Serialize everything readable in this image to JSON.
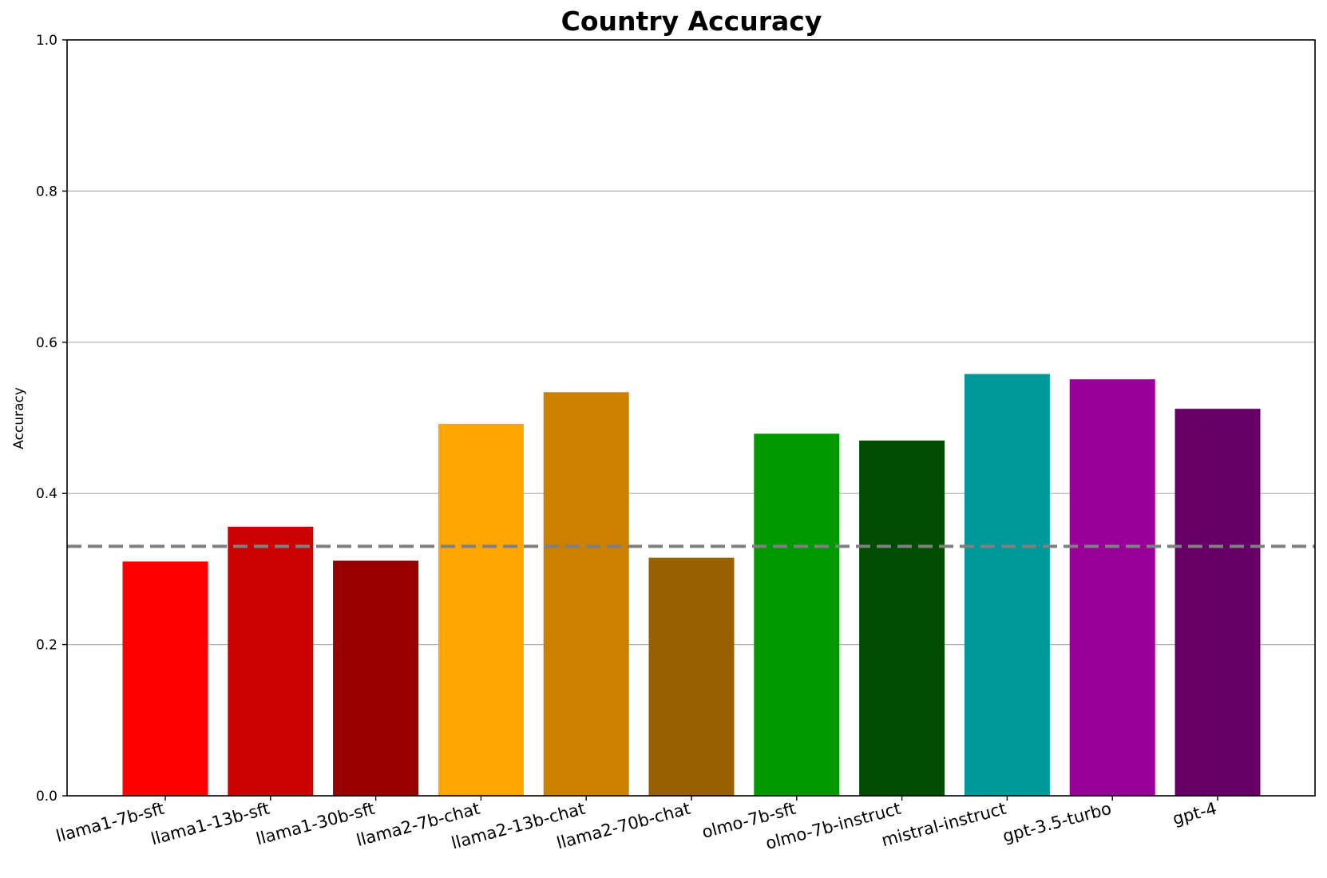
{
  "chart_data": {
    "type": "bar",
    "title": "Country Accuracy",
    "xlabel": "",
    "ylabel": "Accuracy",
    "ylim": [
      0,
      1.0
    ],
    "yticks": [
      "0.0",
      "0.2",
      "0.4",
      "0.6",
      "0.8",
      "1.0"
    ],
    "grid": "horizontal",
    "categories": [
      "llama1-7b-sft",
      "llama1-13b-sft",
      "llama1-30b-sft",
      "llama2-7b-chat",
      "llama2-13b-chat",
      "llama2-70b-chat",
      "olmo-7b-sft",
      "olmo-7b-instruct",
      "mistral-instruct",
      "gpt-3.5-turbo",
      "gpt-4"
    ],
    "values": [
      0.31,
      0.356,
      0.311,
      0.492,
      0.534,
      0.315,
      0.479,
      0.47,
      0.558,
      0.551,
      0.512
    ],
    "colors": [
      "#ff0000",
      "#cc0000",
      "#990000",
      "#ffa500",
      "#cc8000",
      "#996000",
      "#009900",
      "#004c00",
      "#009999",
      "#990099",
      "#660066"
    ],
    "reference_line": {
      "value": 0.33,
      "style": "dashed",
      "color": "#808080"
    }
  }
}
